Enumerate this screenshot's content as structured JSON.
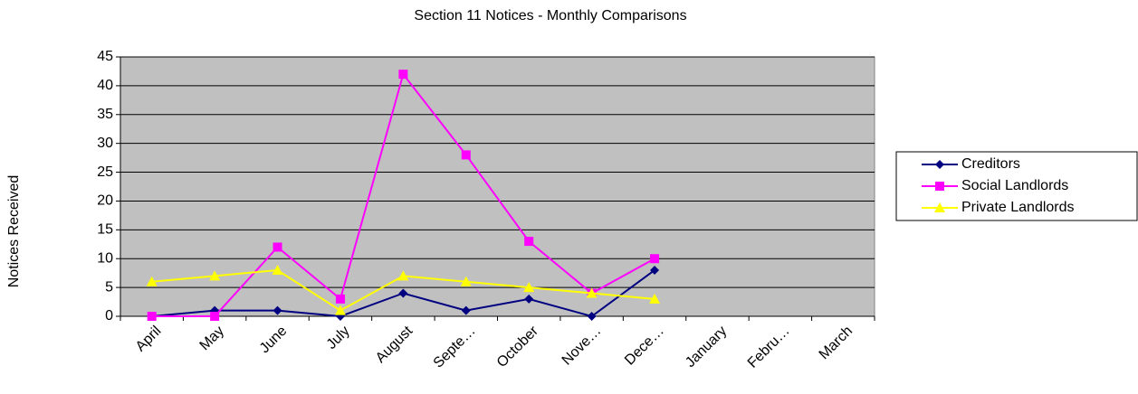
{
  "chart_data": {
    "type": "line",
    "title": "Section 11 Notices - Monthly Comparisons",
    "y_label": "Notices Received",
    "categories": [
      "April",
      "May",
      "June",
      "July",
      "August",
      "Septe…",
      "October",
      "Nove…",
      "Dece…",
      "January",
      "Febru…",
      "March"
    ],
    "series": [
      {
        "name": "Creditors",
        "color": "#000080",
        "marker": "diamond",
        "values": [
          0,
          1,
          1,
          0,
          4,
          1,
          3,
          0,
          8,
          null,
          null,
          null
        ]
      },
      {
        "name": "Social Landlords",
        "color": "#ff00ff",
        "marker": "square",
        "values": [
          0,
          0,
          12,
          3,
          42,
          28,
          13,
          4,
          10,
          null,
          null,
          null
        ]
      },
      {
        "name": "Private Landlords",
        "color": "#ffff00",
        "marker": "triangle",
        "values": [
          6,
          7,
          8,
          1,
          7,
          6,
          5,
          4,
          3,
          null,
          null,
          null
        ]
      }
    ],
    "ylim": [
      0,
      45
    ],
    "yticks": [
      0,
      5,
      10,
      15,
      20,
      25,
      30,
      35,
      40,
      45
    ],
    "grid": true,
    "legend": "right"
  }
}
